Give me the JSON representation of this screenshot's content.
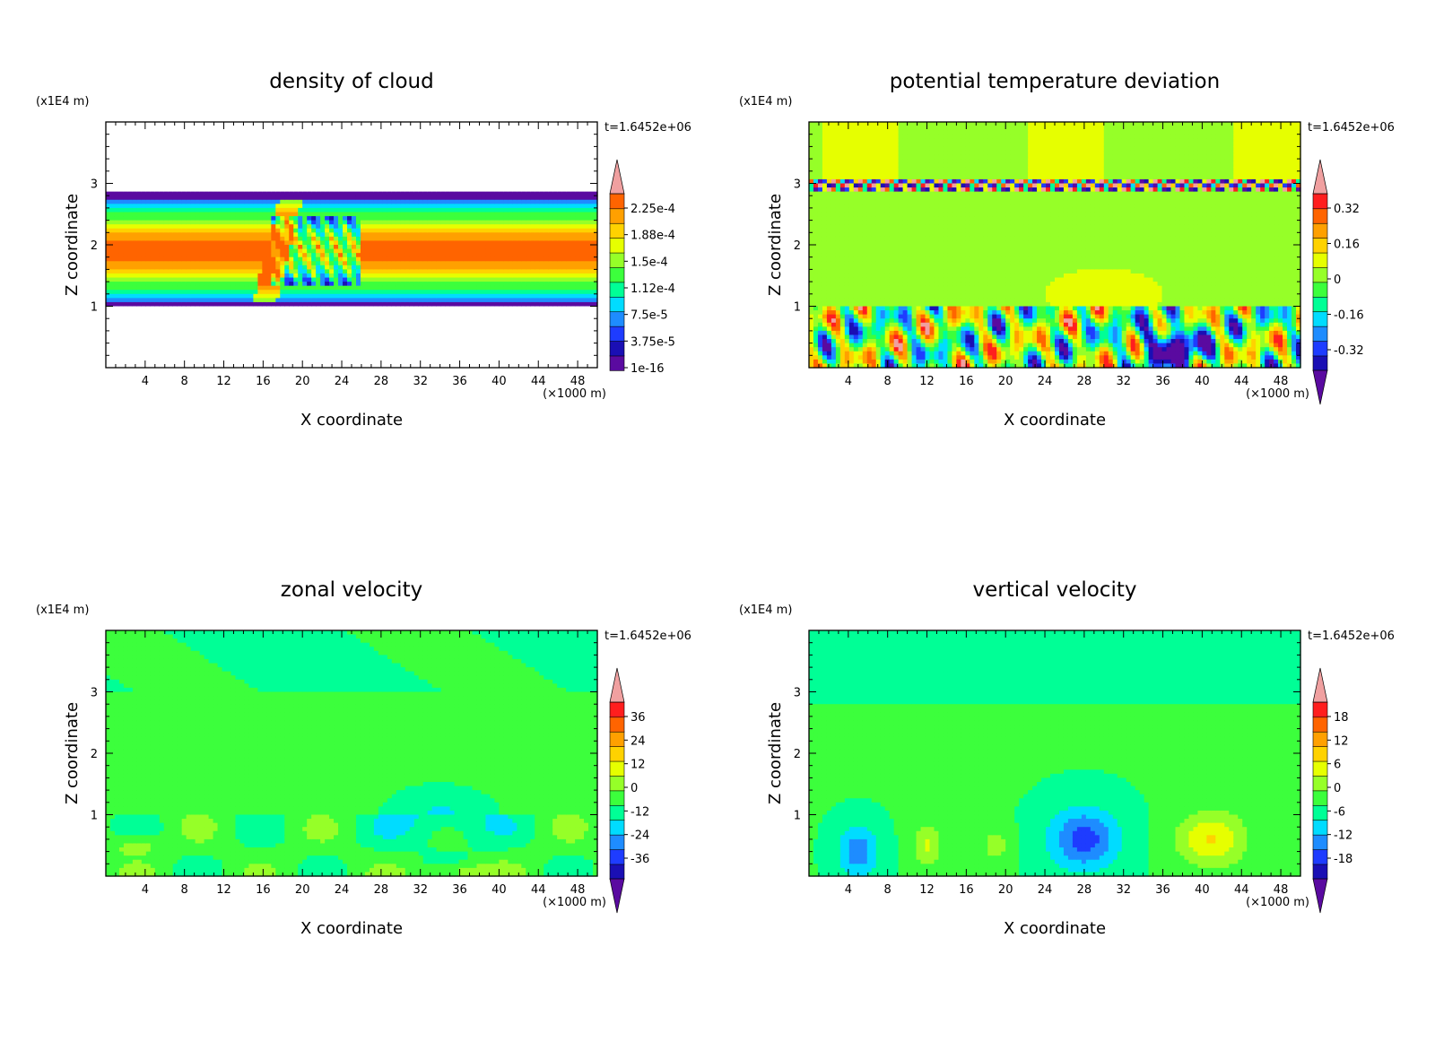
{
  "colors": {
    "palette": [
      "#5a0aa0",
      "#1a0fb4",
      "#1e3cff",
      "#1e8cff",
      "#00dcff",
      "#00ff96",
      "#3cff3c",
      "#96ff28",
      "#e6ff00",
      "#ffd200",
      "#ffa000",
      "#ff6400",
      "#ff1e1e",
      "#f0a0a0"
    ],
    "background": "#ffffff"
  },
  "chart_data": [
    {
      "type": "heatmap",
      "field": "cloud",
      "title": "density of cloud",
      "xlabel": "X coordinate",
      "ylabel": "Z coordinate",
      "x_unit": "(×1000 m)",
      "y_unit": "(x1E4 m)",
      "time_label": "t=1.6452e+06",
      "xlim": [
        0,
        50
      ],
      "ylim": [
        0,
        4
      ],
      "x_ticks": [
        4,
        8,
        12,
        16,
        20,
        24,
        28,
        32,
        36,
        40,
        44,
        48
      ],
      "y_ticks": [
        1,
        2,
        3
      ],
      "colorbar": {
        "labels": [
          "2.25e-4",
          "1.88e-4",
          "1.5e-4",
          "1.12e-4",
          "7.5e-5",
          "3.75e-5",
          "1e-16"
        ],
        "min_arrow": false,
        "max_arrow": true
      }
    },
    {
      "type": "heatmap",
      "field": "theta",
      "title": "potential temperature deviation",
      "xlabel": "X coordinate",
      "ylabel": "Z coordinate",
      "x_unit": "(×1000 m)",
      "y_unit": "(x1E4 m)",
      "time_label": "t=1.6452e+06",
      "xlim": [
        0,
        50
      ],
      "ylim": [
        0,
        4
      ],
      "x_ticks": [
        4,
        8,
        12,
        16,
        20,
        24,
        28,
        32,
        36,
        40,
        44,
        48
      ],
      "y_ticks": [
        1,
        2,
        3
      ],
      "colorbar": {
        "labels": [
          "0.32",
          "0.16",
          "0",
          "-0.16",
          "-0.32"
        ],
        "min_arrow": true,
        "max_arrow": true
      }
    },
    {
      "type": "heatmap",
      "field": "u",
      "title": "zonal velocity",
      "xlabel": "X coordinate",
      "ylabel": "Z coordinate",
      "x_unit": "(×1000 m)",
      "y_unit": "(x1E4 m)",
      "time_label": "t=1.6452e+06",
      "xlim": [
        0,
        50
      ],
      "ylim": [
        0,
        4
      ],
      "x_ticks": [
        4,
        8,
        12,
        16,
        20,
        24,
        28,
        32,
        36,
        40,
        44,
        48
      ],
      "y_ticks": [
        1,
        2,
        3
      ],
      "colorbar": {
        "labels": [
          "36",
          "24",
          "12",
          "0",
          "-12",
          "-24",
          "-36"
        ],
        "min_arrow": true,
        "max_arrow": true
      }
    },
    {
      "type": "heatmap",
      "field": "w",
      "title": "vertical velocity",
      "xlabel": "X coordinate",
      "ylabel": "Z coordinate",
      "x_unit": "(×1000 m)",
      "y_unit": "(x1E4 m)",
      "time_label": "t=1.6452e+06",
      "xlim": [
        0,
        50
      ],
      "ylim": [
        0,
        4
      ],
      "x_ticks": [
        4,
        8,
        12,
        16,
        20,
        24,
        28,
        32,
        36,
        40,
        44,
        48
      ],
      "y_ticks": [
        1,
        2,
        3
      ],
      "colorbar": {
        "labels": [
          "18",
          "12",
          "6",
          "0",
          "-6",
          "-12",
          "-18"
        ],
        "min_arrow": true,
        "max_arrow": true
      }
    }
  ]
}
